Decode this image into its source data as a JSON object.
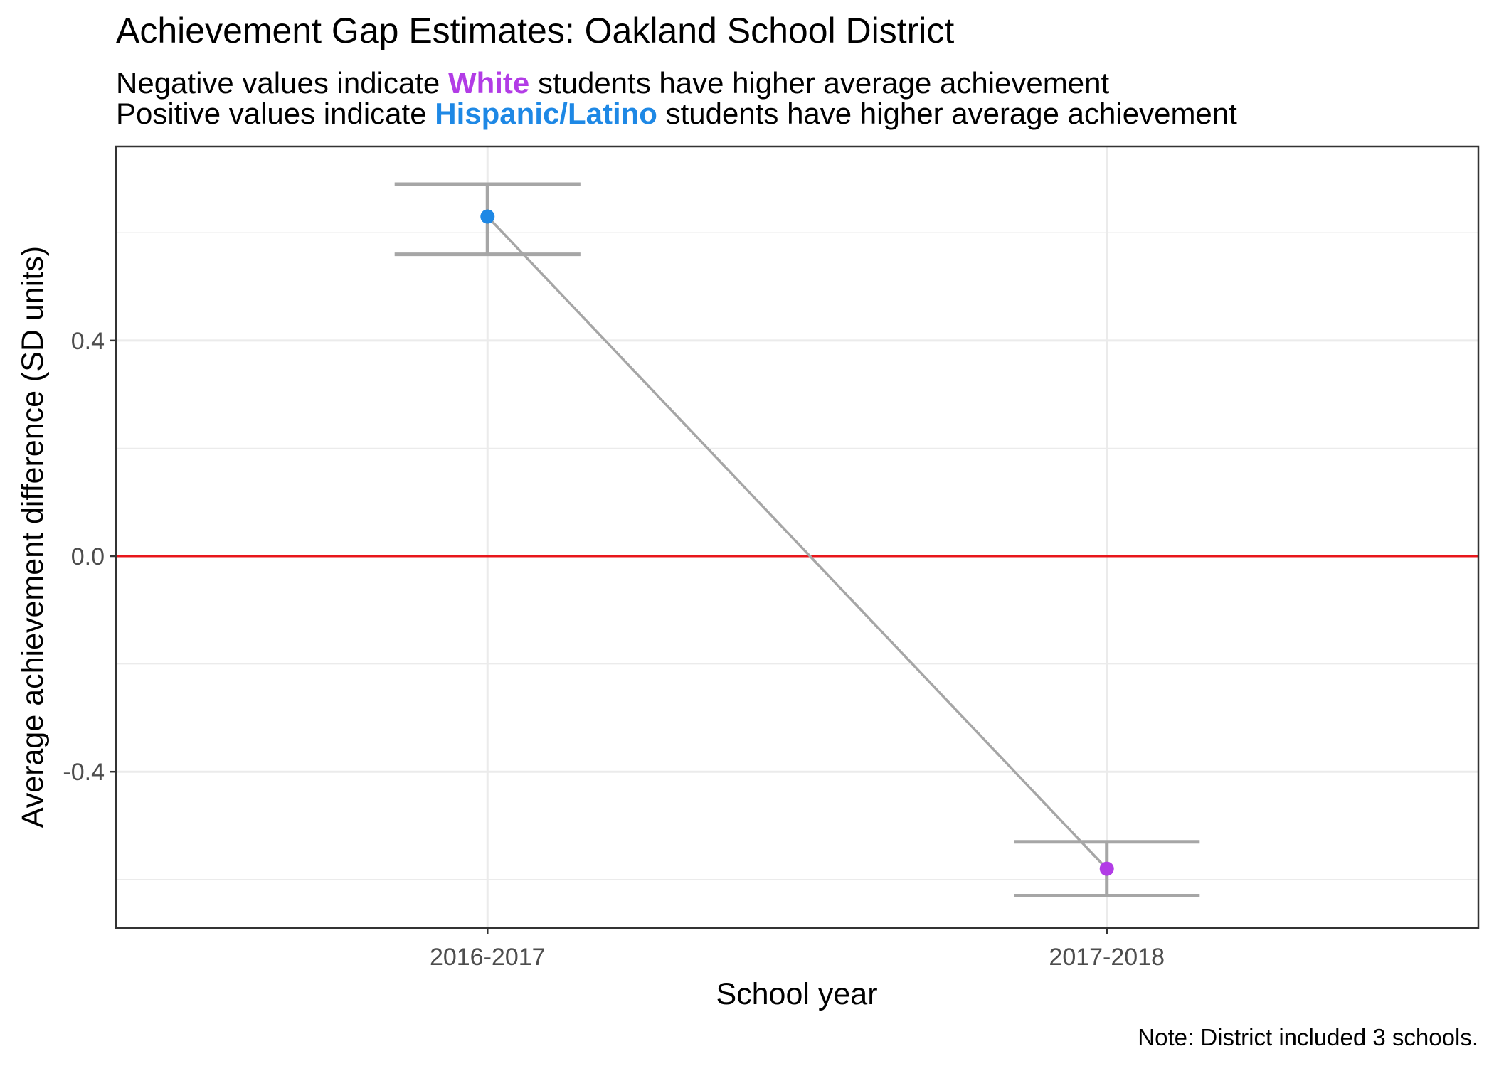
{
  "chart_data": {
    "type": "scatter",
    "title": "Achievement Gap Estimates: Oakland School District",
    "subtitle_lines": [
      {
        "prefix": "Negative values indicate",
        "group": "White",
        "suffix": "students have higher average achievement"
      },
      {
        "prefix": "Positive values indicate",
        "group": "Hispanic/Latino",
        "suffix": "students have higher average achievement"
      }
    ],
    "xlabel": "School year",
    "ylabel": "Average achievement difference (SD units)",
    "caption": "Note: District included 3 schools.",
    "categories": [
      "2016-2017",
      "2017-2018"
    ],
    "values": [
      0.63,
      -0.58
    ],
    "error_low": [
      0.56,
      -0.63
    ],
    "error_high": [
      0.69,
      -0.53
    ],
    "point_groups": [
      "Hispanic/Latino",
      "White"
    ],
    "y_ticks": [
      0.4,
      0.0,
      -0.4
    ],
    "y_tick_labels": [
      "0.4",
      "0.0",
      "-0.4"
    ],
    "ylim": [
      -0.69,
      0.76
    ],
    "reference_line": 0,
    "grid": true,
    "connecting_line": true,
    "colors": {
      "White": "#b23ce6",
      "Hispanic/Latino": "#1e88e5",
      "error_bar": "#a6a6a6",
      "line": "#a6a6a6",
      "reference_line": "#e8161b",
      "grid": "#ebebeb",
      "panel_border": "#333333"
    }
  }
}
